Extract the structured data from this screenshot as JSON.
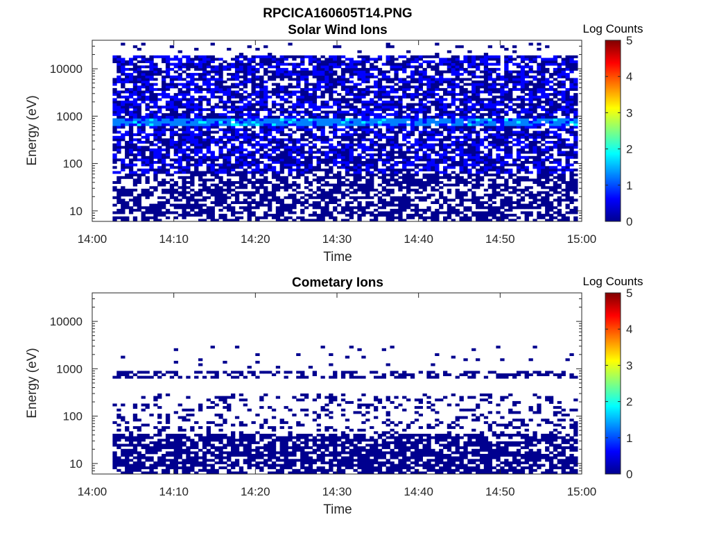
{
  "figure": {
    "filename_title": "RPCICA160605T14.PNG"
  },
  "colormap": [
    "#00008f",
    "#0000ff",
    "#0080ff",
    "#00ffff",
    "#80ff80",
    "#ffff00",
    "#ff8000",
    "#ff0000",
    "#800000"
  ],
  "chart_data": [
    {
      "type": "heatmap",
      "title": "Solar Wind Ions",
      "xlabel": "Time",
      "ylabel": "Energy (eV)",
      "y_scale": "log",
      "x_range": [
        "14:00",
        "15:00"
      ],
      "ylim": [
        6,
        40000
      ],
      "x_ticks": [
        "14:00",
        "14:10",
        "14:20",
        "14:30",
        "14:40",
        "14:50",
        "15:00"
      ],
      "y_ticks": [
        "10",
        "100",
        "1000",
        "10000"
      ],
      "colorbar": {
        "label": "Log Counts",
        "range": [
          0,
          5
        ],
        "ticks": [
          "0",
          "1",
          "2",
          "3",
          "4",
          "5"
        ]
      },
      "data_time_range": [
        "14:02.5",
        "14:59.5"
      ],
      "energy_bands": [
        {
          "range_ev": [
            6,
            60
          ],
          "log_counts": 0.2,
          "coverage": "patchy, dense"
        },
        {
          "range_ev": [
            60,
            20000
          ],
          "log_counts": 0.3,
          "coverage": "dense"
        },
        {
          "range_ev": [
            650,
            850
          ],
          "log_counts": 1.2,
          "coverage": "continuous enhanced band"
        },
        {
          "range_ev": [
            20000,
            35000
          ],
          "log_counts": 0.2,
          "coverage": "sparse"
        }
      ]
    },
    {
      "type": "heatmap",
      "title": "Cometary Ions",
      "xlabel": "Time",
      "ylabel": "Energy (eV)",
      "y_scale": "log",
      "x_range": [
        "14:00",
        "15:00"
      ],
      "ylim": [
        6,
        40000
      ],
      "x_ticks": [
        "14:00",
        "14:10",
        "14:20",
        "14:30",
        "14:40",
        "14:50",
        "15:00"
      ],
      "y_ticks": [
        "10",
        "100",
        "1000",
        "10000"
      ],
      "colorbar": {
        "label": "Log Counts",
        "range": [
          0,
          5
        ],
        "ticks": [
          "0",
          "1",
          "2",
          "3",
          "4",
          "5"
        ]
      },
      "data_time_range": [
        "14:02.5",
        "14:59.5"
      ],
      "energy_bands": [
        {
          "range_ev": [
            6,
            40
          ],
          "log_counts": 0.2,
          "coverage": "dense"
        },
        {
          "range_ev": [
            40,
            300
          ],
          "log_counts": 0.1,
          "coverage": "sparse streaks"
        },
        {
          "range_ev": [
            650,
            850
          ],
          "log_counts": 0.1,
          "coverage": "intermittent"
        },
        {
          "range_ev": [
            1000,
            3000
          ],
          "log_counts": 0.1,
          "coverage": "rare"
        }
      ]
    }
  ]
}
